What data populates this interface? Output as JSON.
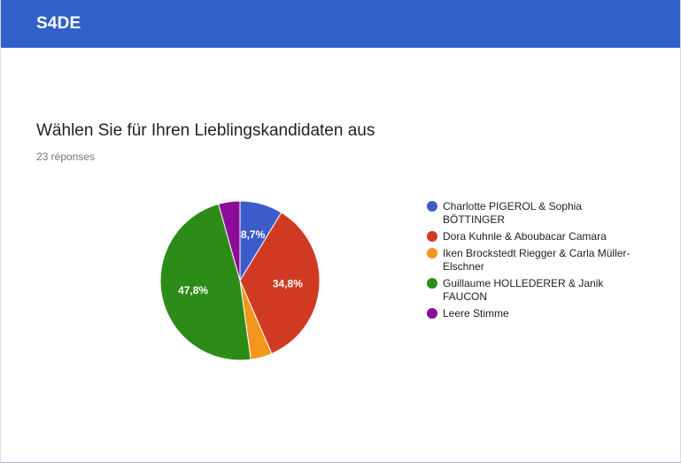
{
  "header": {
    "brand": "S4DE"
  },
  "question": {
    "title": "Wählen Sie für Ihren Lieblingskandidaten aus",
    "responses": "23 réponses"
  },
  "chart_data": {
    "type": "pie",
    "total_responses": 23,
    "start_angle_deg": 90,
    "direction": "clockwise",
    "legend_position": "right",
    "slices": [
      {
        "label": "Charlotte PIGEROL & Sophia BÖTTINGER",
        "value": 2,
        "percent": 8.7,
        "percent_label": "8,7%",
        "color": "#3c5ccb"
      },
      {
        "label": "Dora Kuhnle & Aboubacar Camara",
        "value": 8,
        "percent": 34.8,
        "percent_label": "34,8%",
        "color": "#d13a22"
      },
      {
        "label": "Iken Brockstedt Riegger & Carla Müller-Elschner",
        "value": 1,
        "percent": 4.3,
        "percent_label": "",
        "color": "#f4961d"
      },
      {
        "label": "Guillaume HOLLEDERER & Janik FAUCON",
        "value": 11,
        "percent": 47.8,
        "percent_label": "47,8%",
        "color": "#2d8c18"
      },
      {
        "label": "Leere Stimme",
        "value": 1,
        "percent": 4.3,
        "percent_label": "",
        "color": "#8b0c98"
      }
    ]
  }
}
